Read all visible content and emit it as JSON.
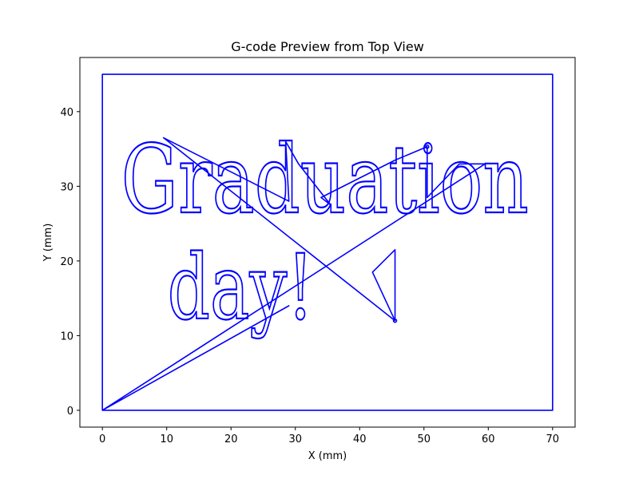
{
  "chart_data": {
    "type": "line",
    "title": "G-code Preview from Top View",
    "xlabel": "X (mm)",
    "ylabel": "Y (mm)",
    "xlim": [
      -3.5,
      73.5
    ],
    "ylim": [
      -2.25,
      47.25
    ],
    "x_ticks": [
      0,
      10,
      20,
      30,
      40,
      50,
      60,
      70
    ],
    "y_ticks": [
      0,
      10,
      20,
      30,
      40
    ],
    "grid": false,
    "series_color": "#0000ff",
    "series": [
      {
        "points": [
          [
            0,
            0
          ],
          [
            0,
            45
          ],
          [
            70,
            45
          ],
          [
            70,
            0
          ],
          [
            0,
            0
          ],
          [
            29,
            14
          ],
          [
            0,
            0
          ],
          [
            59.5,
            33
          ],
          [
            55.5,
            33
          ],
          [
            50.5,
            28.5
          ],
          [
            50.5,
            35.3
          ],
          [
            45.5,
            33.5
          ],
          [
            34,
            28.5
          ],
          [
            35.5,
            27.5
          ],
          [
            30.5,
            33
          ],
          [
            28.5,
            36
          ],
          [
            29,
            28
          ],
          [
            9.5,
            36.5
          ],
          [
            45.5,
            12
          ],
          [
            45.5,
            21.5
          ],
          [
            42,
            18.5
          ],
          [
            45.5,
            12
          ]
        ]
      }
    ],
    "annotations": [
      {
        "text": "Graduation",
        "x": 34.6,
        "y": 26.5
      },
      {
        "text": "day!",
        "x": 21.5,
        "y": 12.3
      }
    ]
  }
}
